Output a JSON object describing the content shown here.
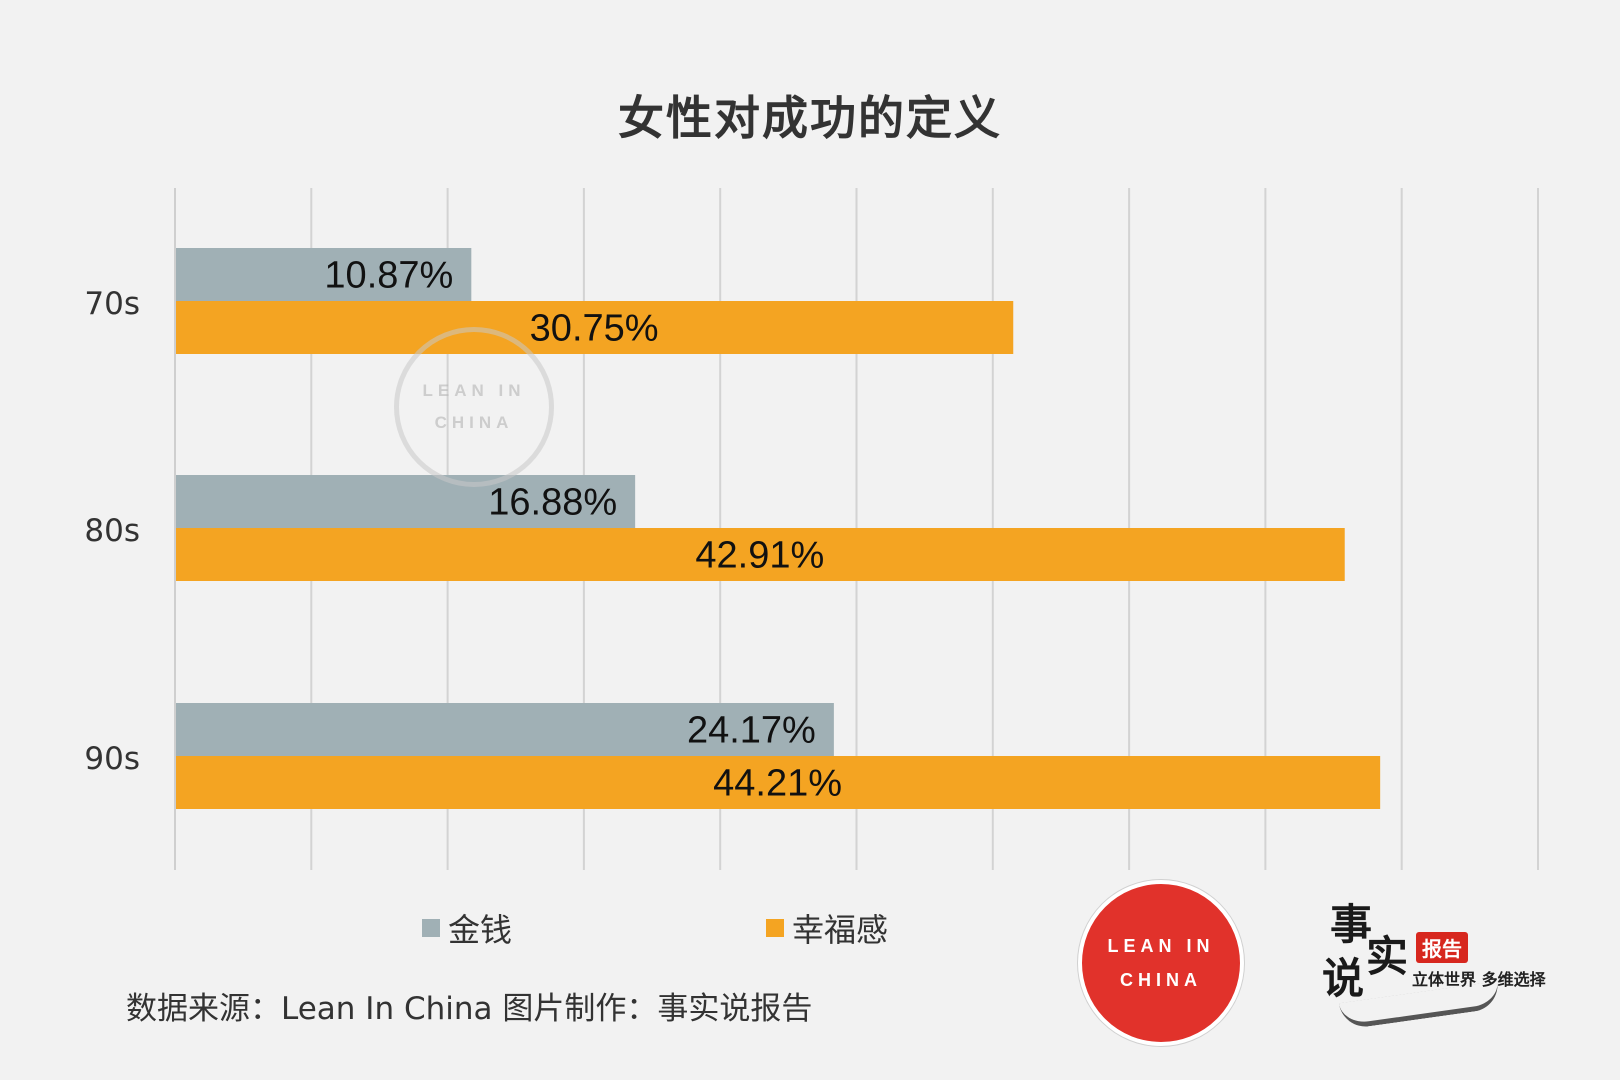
{
  "chart_data": {
    "type": "bar",
    "orientation": "horizontal",
    "title": "女性对成功的定义",
    "categories": [
      "70s",
      "80s",
      "90s"
    ],
    "series": [
      {
        "name": "金钱",
        "color": "#a0b0b5",
        "values": [
          10.87,
          16.88,
          24.17
        ],
        "labels": [
          "10.87%",
          "16.88%",
          "24.17%"
        ]
      },
      {
        "name": "幸福感",
        "color": "#f4a422",
        "values": [
          30.75,
          42.91,
          44.21
        ],
        "labels": [
          "30.75%",
          "42.91%",
          "44.21%"
        ]
      }
    ],
    "xlim": [
      0,
      50
    ],
    "grid": true,
    "legend_position": "bottom"
  },
  "source_text": "数据来源：Lean In China  图片制作：事实说报告",
  "brand_lean": {
    "line1": "LEAN IN",
    "line2": "CHINA"
  },
  "brand_report": {
    "big1": "事",
    "big2": "实",
    "big3": "说",
    "tag": "报告",
    "slogan": "立体世界 多维选择"
  }
}
